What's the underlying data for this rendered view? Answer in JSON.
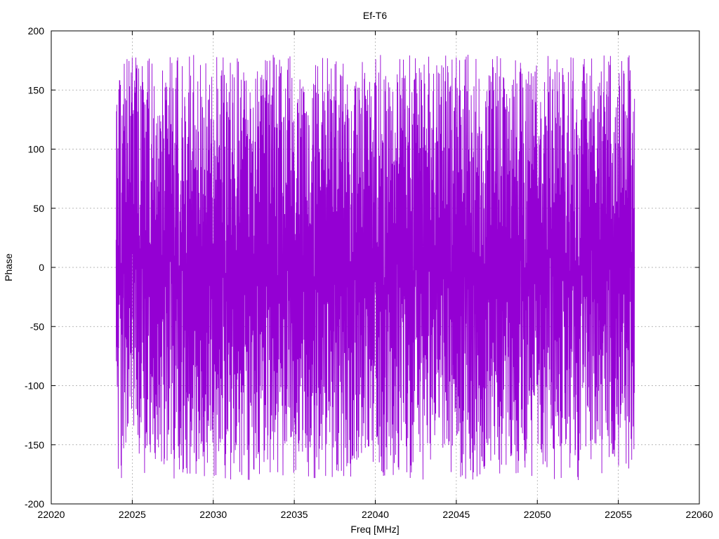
{
  "chart_data": {
    "type": "line",
    "title": "Ef-T6",
    "xlabel": "Freq [MHz]",
    "ylabel": "Phase",
    "xlim": [
      22020,
      22060
    ],
    "ylim": [
      -200,
      200
    ],
    "x_ticks": [
      22020,
      22025,
      22030,
      22035,
      22040,
      22045,
      22050,
      22055,
      22060
    ],
    "y_ticks": [
      -200,
      -150,
      -100,
      -50,
      0,
      50,
      100,
      150,
      200
    ],
    "grid": true,
    "series": [
      {
        "color": "#9400d3",
        "x_range": [
          22024,
          22056
        ],
        "phase_wrap_range": [
          -180,
          180
        ],
        "values_sample": [
          [
            22024.0,
            175
          ],
          [
            22024.05,
            -160
          ],
          [
            22024.1,
            120
          ],
          [
            22024.2,
            -150
          ],
          [
            22024.3,
            165
          ],
          [
            22024.4,
            -175
          ],
          [
            22024.5,
            140
          ],
          [
            22024.6,
            -170
          ],
          [
            22025.0,
            150
          ],
          [
            22025.2,
            -178
          ],
          [
            22025.5,
            160
          ],
          [
            22025.8,
            -175
          ],
          [
            22026.0,
            170
          ],
          [
            22026.5,
            -178
          ],
          [
            22027.0,
            172
          ],
          [
            22027.5,
            -176
          ],
          [
            22028.0,
            175
          ],
          [
            22028.5,
            -178
          ],
          [
            22029.0,
            176
          ],
          [
            22029.5,
            -175
          ],
          [
            22030.0,
            170
          ],
          [
            22030.5,
            -177
          ],
          [
            22031.0,
            174
          ],
          [
            22031.5,
            -172
          ],
          [
            22032.0,
            176
          ],
          [
            22032.5,
            -178
          ],
          [
            22033.0,
            175
          ],
          [
            22033.5,
            -170
          ],
          [
            22034.0,
            177
          ],
          [
            22034.5,
            -176
          ],
          [
            22035.0,
            176
          ],
          [
            22035.5,
            -174
          ],
          [
            22036.0,
            175
          ],
          [
            22036.5,
            -172
          ],
          [
            22037.0,
            176
          ],
          [
            22037.5,
            -178
          ],
          [
            22038.0,
            174
          ],
          [
            22038.5,
            -176
          ],
          [
            22039.0,
            172
          ],
          [
            22039.5,
            -174
          ],
          [
            22040.0,
            175
          ],
          [
            22040.5,
            -173
          ],
          [
            22041.0,
            176
          ],
          [
            22041.5,
            -176
          ],
          [
            22042.0,
            174
          ],
          [
            22042.5,
            -172
          ],
          [
            22043.0,
            178
          ],
          [
            22043.5,
            -174
          ],
          [
            22044.0,
            175
          ],
          [
            22044.5,
            -177
          ],
          [
            22045.0,
            174
          ],
          [
            22045.5,
            -172
          ],
          [
            22046.0,
            176
          ],
          [
            22046.5,
            -170
          ],
          [
            22047.0,
            175
          ],
          [
            22047.5,
            -179
          ],
          [
            22048.0,
            174
          ],
          [
            22048.5,
            -176
          ],
          [
            22049.0,
            175
          ],
          [
            22049.5,
            -173
          ],
          [
            22050.0,
            176
          ],
          [
            22050.5,
            -168
          ],
          [
            22051.0,
            174
          ],
          [
            22051.5,
            -172
          ],
          [
            22052.0,
            175
          ],
          [
            22052.5,
            -170
          ],
          [
            22053.0,
            172
          ],
          [
            22053.5,
            -176
          ],
          [
            22054.0,
            175
          ],
          [
            22054.5,
            -174
          ],
          [
            22055.0,
            176
          ],
          [
            22055.5,
            -175
          ],
          [
            22056.0,
            178
          ]
        ]
      }
    ]
  }
}
